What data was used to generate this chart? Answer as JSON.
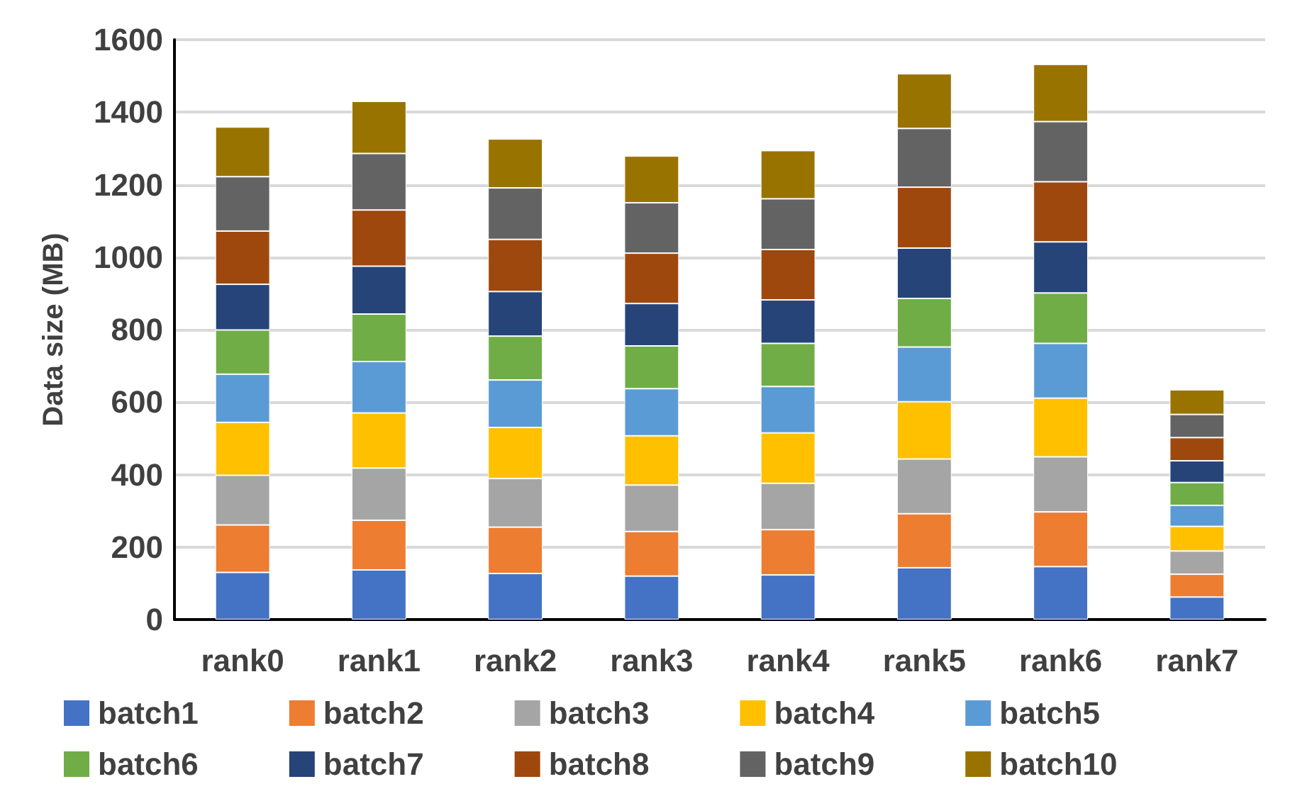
{
  "chart_data": {
    "type": "bar",
    "stacked": true,
    "ylabel": "Data size (MB)",
    "categories": [
      "rank0",
      "rank1",
      "rank2",
      "rank3",
      "rank4",
      "rank5",
      "rank6",
      "rank7"
    ],
    "series": [
      {
        "name": "batch1",
        "color": "#4472c4",
        "values": [
          130,
          137,
          127,
          120,
          123,
          143,
          146,
          62
        ]
      },
      {
        "name": "batch2",
        "color": "#ed7d31",
        "values": [
          131,
          137,
          128,
          123,
          125,
          149,
          151,
          63
        ]
      },
      {
        "name": "batch3",
        "color": "#a5a5a5",
        "values": [
          137,
          144,
          134,
          128,
          128,
          151,
          152,
          64
        ]
      },
      {
        "name": "batch4",
        "color": "#ffc000",
        "values": [
          146,
          152,
          141,
          136,
          139,
          158,
          162,
          68
        ]
      },
      {
        "name": "batch5",
        "color": "#5b9bd5",
        "values": [
          133,
          142,
          131,
          130,
          128,
          151,
          151,
          58
        ]
      },
      {
        "name": "batch6",
        "color": "#70ad47",
        "values": [
          122,
          131,
          121,
          118,
          119,
          134,
          139,
          63
        ]
      },
      {
        "name": "batch7",
        "color": "#264478",
        "values": [
          126,
          132,
          123,
          117,
          120,
          139,
          141,
          60
        ]
      },
      {
        "name": "batch8",
        "color": "#9e480e",
        "values": [
          147,
          155,
          144,
          139,
          139,
          168,
          166,
          64
        ]
      },
      {
        "name": "batch9",
        "color": "#636363",
        "values": [
          150,
          156,
          142,
          139,
          140,
          162,
          166,
          64
        ]
      },
      {
        "name": "batch10",
        "color": "#997300",
        "values": [
          137,
          144,
          135,
          129,
          133,
          151,
          158,
          68
        ]
      }
    ],
    "ylim": [
      0,
      1600
    ],
    "yticks": [
      0,
      200,
      400,
      600,
      800,
      1000,
      1200,
      1400,
      1600
    ],
    "grid": "y",
    "legend": "bottom"
  }
}
